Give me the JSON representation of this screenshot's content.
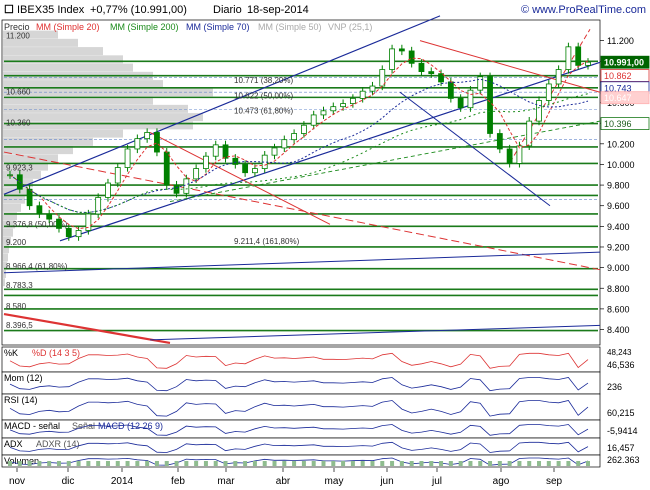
{
  "header": {
    "symbol": "IBEX35 Index",
    "change": "+0,77% (10.991,00)",
    "period": "Diario",
    "date": "18-sep-2014",
    "website": "© www.ProRealTime.com"
  },
  "legend": {
    "price": "Precio",
    "mm20": "MM (Simple 20)",
    "mm200": "MM (Simple 200)",
    "mm70": "MM (Simple 70)",
    "mm50": "MM (Simple 50)",
    "vnp": "VNP (25,1)"
  },
  "colors": {
    "price": "#008000",
    "mm20": "#e03030",
    "mm200": "#1a8a1a",
    "mm70": "#1a2a99",
    "mm50": "#aaaaaa",
    "vnp": "#aaaaaa",
    "last_price_box": "#006400",
    "volume_profile": "#c4c4c4"
  },
  "chart_data": {
    "type": "line",
    "title": "IBEX35 Index",
    "ylim": [
      8250,
      11400
    ],
    "y_ticks": [
      "11.200",
      "11.000",
      "10.800",
      "10.600",
      "10.400",
      "10.200",
      "10.000",
      "9.800",
      "9.600",
      "9.400",
      "9.200",
      "9.000",
      "8.800",
      "8.600",
      "8.400"
    ],
    "x_ticks": [
      "nov",
      "dic",
      "2014",
      "feb",
      "mar",
      "abr",
      "may",
      "jun",
      "jul",
      "ago",
      "sep"
    ],
    "series": [
      {
        "name": "",
        "values": [
          9900,
          9760,
          9600,
          9520,
          9470,
          9380,
          9300,
          9360,
          9520,
          9680,
          9820,
          9970,
          10150,
          10250,
          10310,
          10120,
          9800,
          9720,
          9860,
          9960,
          10080,
          10190,
          10060,
          10000,
          9920,
          9960,
          10090,
          10160,
          10240,
          10300,
          10380,
          10480,
          10520,
          10560,
          10590,
          10640,
          10710,
          10760,
          10920,
          11120,
          11100,
          10980,
          10900,
          10880,
          10800,
          10640,
          10550,
          10720,
          10850,
          10300,
          10150,
          10010,
          10180,
          10420,
          10620,
          10780,
          10920,
          11140,
          10960,
          10991
        ]
      }
    ],
    "price_boxes": [
      {
        "label": "10.991,00",
        "style": "last"
      },
      {
        "label": "10.862",
        "style": "red"
      },
      {
        "label": "10.743",
        "style": "blue"
      },
      {
        "label": "10.647",
        "style": "pink"
      },
      {
        "label": "10.396",
        "style": "green"
      }
    ],
    "annotations": [
      "11.200",
      "10.660",
      "10.360",
      "10.771 (38,20%)",
      "10.622 (50,00%)",
      "10.473 (61,80%)",
      "9.923,3",
      "9.211,4 (161,80%)",
      "9.376,8 (50,00%)",
      "9.200",
      "8.966,4 (61,80%)",
      "8.783,3",
      "8.580",
      "8.396,5"
    ]
  },
  "indicators": [
    {
      "label_a": "%K",
      "label_b": "%D (14 3 5)",
      "value": "46,536",
      "scale_top": "48,243",
      "type": "stoch"
    },
    {
      "label_a": "Mom (12)",
      "label_b": "",
      "value": "236",
      "type": "mom"
    },
    {
      "label_a": "RSI (14)",
      "label_b": "",
      "value": "60,215",
      "type": "rsi"
    },
    {
      "label_a": "MACD - señal",
      "label_b": "Señal",
      "label_c": "MACD (12 26 9)",
      "value": "-5,9414",
      "type": "macd"
    },
    {
      "label_a": "ADX",
      "label_b": "ADXR (14)",
      "value": "16,457",
      "type": "adx"
    },
    {
      "label_a": "Volumen",
      "label_b": "",
      "value": "262.363",
      "type": "vol"
    }
  ]
}
